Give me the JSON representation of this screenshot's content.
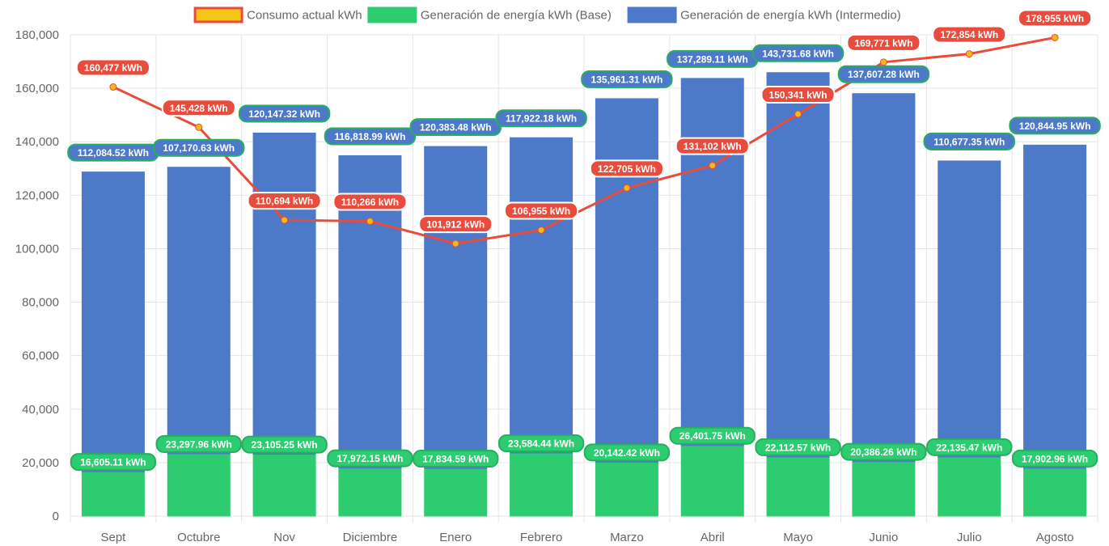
{
  "chart_data": {
    "type": "bar",
    "categories": [
      "Sept",
      "Octubre",
      "Nov",
      "Diciembre",
      "Enero",
      "Febrero",
      "Marzo",
      "Abril",
      "Mayo",
      "Junio",
      "Julio",
      "Agosto"
    ],
    "series": [
      {
        "name": "Consumo actual kWh",
        "type": "line",
        "color": "#e74c3c",
        "point_color": "#f5b916",
        "values": [
          160477,
          145428,
          110694,
          110266,
          101912,
          106955,
          122705,
          131102,
          150341,
          169771,
          172854,
          178955
        ],
        "labels": [
          "160,477 kWh",
          "145,428 kWh",
          "110,694 kWh",
          "110,266 kWh",
          "101,912 kWh",
          "106,955 kWh",
          "122,705 kWh",
          "131,102 kWh",
          "150,341 kWh",
          "169,771 kWh",
          "172,854 kWh",
          "178,955 kWh"
        ]
      },
      {
        "name": "Generación de energía kWh (Base)",
        "type": "bar",
        "stack": "gen",
        "color": "#2ecc71",
        "values": [
          16605.11,
          23297.96,
          23105.25,
          17972.15,
          17834.59,
          23584.44,
          20142.42,
          26401.75,
          22112.57,
          20386.26,
          22135.47,
          17902.96
        ],
        "labels": [
          "16,605.11 kWh",
          "23,297.96 kWh",
          "23,105.25 kWh",
          "17,972.15 kWh",
          "17,834.59 kWh",
          "23,584.44 kWh",
          "20,142.42 kWh",
          "26,401.75 kWh",
          "22,112.57 kWh",
          "20,386.26 kWh",
          "22,135.47 kWh",
          "17,902.96 kWh"
        ]
      },
      {
        "name": "Generación de energía kWh (Intermedio)",
        "type": "bar",
        "stack": "gen",
        "color": "#4d79c9",
        "values": [
          112084.52,
          107170.63,
          120147.32,
          116818.99,
          120383.48,
          117922.18,
          135961.31,
          137289.11,
          143731.68,
          137607.28,
          110677.35,
          120844.95
        ],
        "labels": [
          "112,084.52 kWh",
          "107,170.63 kWh",
          "120,147.32 kWh",
          "116,818.99 kWh",
          "120,383.48 kWh",
          "117,922.18 kWh",
          "135,961.31 kWh",
          "137,289.11 kWh",
          "143,731.68 kWh",
          "137,607.28 kWh",
          "110,677.35 kWh",
          "120,844.95 kWh"
        ]
      }
    ],
    "y_ticks": [
      "0",
      "20,000",
      "40,000",
      "60,000",
      "80,000",
      "100,000",
      "120,000",
      "140,000",
      "160,000",
      "180,000"
    ],
    "ylim": [
      0,
      180000
    ],
    "stacked": true,
    "grid": true,
    "legend": "top",
    "title": "",
    "xlabel": "",
    "ylabel": ""
  },
  "legend_swatches": {
    "line_fill": "#f5c518",
    "line_border": "#e74c3c",
    "label_border_line": "#ffffff",
    "label_border_bar": "#27ae60"
  }
}
